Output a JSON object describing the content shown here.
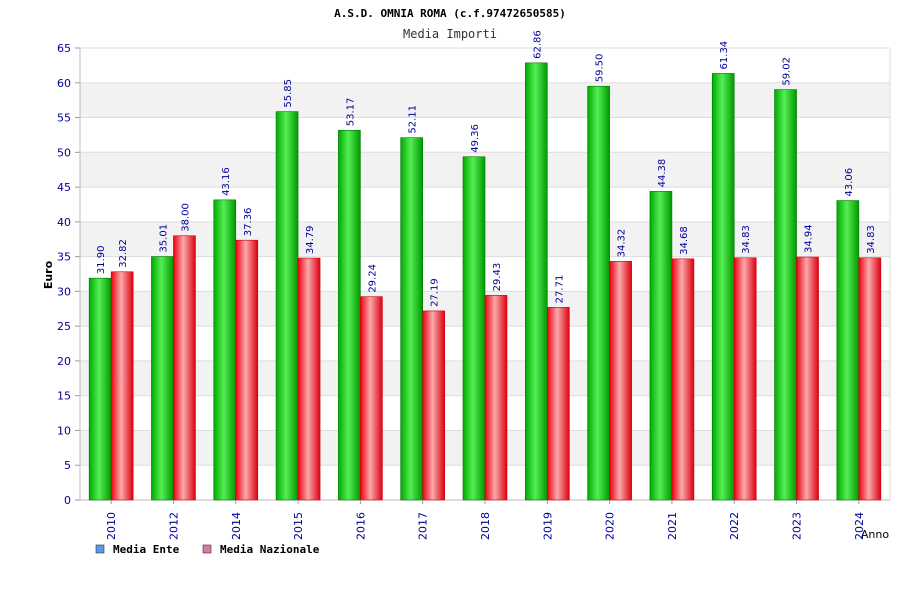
{
  "chart_data": {
    "type": "bar",
    "title": "A.S.D. OMNIA ROMA (c.f.97472650585)",
    "subtitle": "Media Importi",
    "xlabel": "Anno",
    "ylabel": "Euro",
    "ylim": [
      0,
      65
    ],
    "yticks": [
      0,
      5,
      10,
      15,
      20,
      25,
      30,
      35,
      40,
      45,
      50,
      55,
      60,
      65
    ],
    "grid": "horizontal bands",
    "legend_position": "bottom-left",
    "categories": [
      "2010",
      "2012",
      "2014",
      "2015",
      "2016",
      "2017",
      "2018",
      "2019",
      "2020",
      "2021",
      "2022",
      "2023",
      "2024"
    ],
    "series": [
      {
        "name": "Media Ente",
        "values": [
          31.9,
          35.01,
          43.16,
          55.85,
          53.17,
          52.11,
          49.36,
          62.86,
          59.5,
          44.38,
          61.34,
          59.02,
          43.06
        ],
        "labels": [
          "31.90",
          "35.01",
          "43.16",
          "55.85",
          "53.17",
          "52.11",
          "49.36",
          "62.86",
          "59.50",
          "44.38",
          "61.34",
          "59.02",
          "43.06"
        ],
        "color": "#00bb00",
        "legend_color": "#5599ee"
      },
      {
        "name": "Media Nazionale",
        "values": [
          32.82,
          38.0,
          37.36,
          34.79,
          29.24,
          27.19,
          29.43,
          27.71,
          34.32,
          34.68,
          34.83,
          34.94,
          34.83
        ],
        "labels": [
          "32.82",
          "38.00",
          "37.36",
          "34.79",
          "29.24",
          "27.19",
          "29.43",
          "27.71",
          "34.32",
          "34.68",
          "34.83",
          "34.94",
          "34.83"
        ],
        "color": "#ee1122",
        "legend_color": "#dd77aa"
      }
    ],
    "colors": {
      "axis_text": "#000099",
      "band": "#f2f2f2",
      "grid": "#dddddd"
    }
  }
}
